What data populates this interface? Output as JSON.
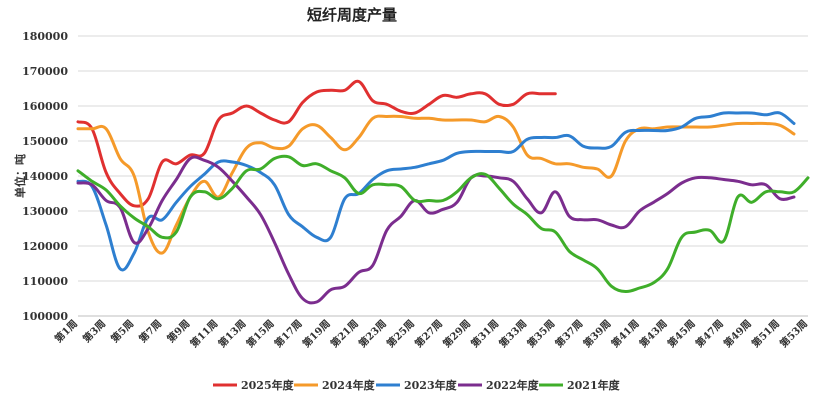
{
  "chart_data": {
    "type": "line",
    "title": "短纤周度产量",
    "ylabel": "单位：吨",
    "ylim": [
      100000,
      180000
    ],
    "yticks": [
      100000,
      110000,
      120000,
      130000,
      140000,
      150000,
      160000,
      170000,
      180000
    ],
    "ytick_labels": [
      "100000",
      "110000",
      "120000",
      "130000",
      "140000",
      "150000",
      "160000",
      "170000",
      "180000"
    ],
    "xlim": [
      1,
      53
    ],
    "xticks": [
      1,
      3,
      5,
      7,
      9,
      11,
      13,
      15,
      17,
      19,
      21,
      23,
      25,
      27,
      29,
      31,
      33,
      35,
      37,
      39,
      41,
      43,
      45,
      47,
      49,
      51,
      53
    ],
    "xtick_labels": [
      "第1周",
      "第3周",
      "第5周",
      "第7周",
      "第9周",
      "第11周",
      "第13周",
      "第15周",
      "第17周",
      "第19周",
      "第21周",
      "第23周",
      "第25周",
      "第27周",
      "第29周",
      "第31周",
      "第33周",
      "第35周",
      "第37周",
      "第39周",
      "第41周",
      "第43周",
      "第45周",
      "第47周",
      "第49周",
      "第51周",
      "第53周"
    ],
    "grid": true,
    "legend_position": "bottom",
    "series": [
      {
        "name": "2025年度",
        "color": "#e03030",
        "x": [
          1,
          2,
          3,
          4,
          5,
          6,
          7,
          8,
          9,
          10,
          11,
          12,
          13,
          14,
          15,
          16,
          17,
          18,
          19,
          20,
          21,
          22,
          23,
          24,
          25,
          26,
          27,
          28,
          29,
          30,
          31,
          32,
          33,
          34,
          35
        ],
        "y": [
          155500,
          153500,
          141000,
          135000,
          131500,
          133500,
          144000,
          143500,
          146000,
          146500,
          156000,
          158000,
          160000,
          158000,
          156000,
          155500,
          161000,
          164000,
          164500,
          164500,
          167000,
          161500,
          160500,
          158500,
          158000,
          160500,
          163000,
          162500,
          163500,
          163500,
          160500,
          160500,
          163500,
          163500,
          163500
        ]
      },
      {
        "name": "2024年度",
        "color": "#f59a2a",
        "x": [
          1,
          2,
          3,
          4,
          5,
          6,
          7,
          8,
          9,
          10,
          11,
          12,
          13,
          14,
          15,
          16,
          17,
          18,
          19,
          20,
          21,
          22,
          23,
          24,
          25,
          26,
          27,
          28,
          29,
          30,
          31,
          32,
          33,
          34,
          35,
          36,
          37,
          38,
          39,
          40,
          41,
          42,
          43,
          44,
          45,
          46,
          47,
          48,
          49,
          50,
          51,
          52
        ],
        "y": [
          153500,
          153500,
          153500,
          145000,
          140000,
          124000,
          118000,
          126000,
          134000,
          138500,
          134000,
          141000,
          148000,
          149500,
          148000,
          148500,
          153500,
          154500,
          151000,
          147500,
          151000,
          156500,
          157000,
          157000,
          156500,
          156500,
          156000,
          156000,
          156000,
          155500,
          157000,
          154000,
          146000,
          145000,
          143500,
          143500,
          142500,
          142000,
          140000,
          150000,
          153500,
          153500,
          154000,
          154000,
          154000,
          154000,
          154500,
          155000,
          155000,
          155000,
          154500,
          152000
        ]
      },
      {
        "name": "2023年度",
        "color": "#2e7fd0",
        "x": [
          1,
          2,
          3,
          4,
          5,
          6,
          7,
          8,
          9,
          10,
          11,
          12,
          13,
          14,
          15,
          16,
          17,
          18,
          19,
          20,
          21,
          22,
          23,
          24,
          25,
          26,
          27,
          28,
          29,
          30,
          31,
          32,
          33,
          34,
          35,
          36,
          37,
          38,
          39,
          40,
          41,
          42,
          43,
          44,
          45,
          46,
          47,
          48,
          49,
          50,
          51,
          52
        ],
        "y": [
          138500,
          137000,
          126000,
          113500,
          118000,
          128000,
          127500,
          132500,
          137000,
          140500,
          144000,
          144000,
          143000,
          141000,
          137500,
          129000,
          125500,
          122500,
          122500,
          133500,
          135000,
          139000,
          141500,
          142000,
          142500,
          143500,
          144500,
          146500,
          147000,
          147000,
          147000,
          147000,
          150500,
          151000,
          151000,
          151500,
          148500,
          148000,
          148500,
          152500,
          153000,
          153000,
          153000,
          154000,
          156500,
          157000,
          158000,
          158000,
          158000,
          157500,
          158000,
          155000
        ]
      },
      {
        "name": "2022年度",
        "color": "#7b2d8e",
        "x": [
          1,
          2,
          3,
          4,
          5,
          6,
          7,
          8,
          9,
          10,
          11,
          12,
          13,
          14,
          15,
          16,
          17,
          18,
          19,
          20,
          21,
          22,
          23,
          24,
          25,
          26,
          27,
          28,
          29,
          30,
          31,
          32,
          33,
          34,
          35,
          36,
          37,
          38,
          39,
          40,
          41,
          42,
          43,
          44,
          45,
          46,
          47,
          48,
          49,
          50,
          51,
          52
        ],
        "y": [
          138000,
          137500,
          133000,
          131000,
          121000,
          125000,
          133000,
          139000,
          145000,
          144500,
          142500,
          138500,
          134000,
          129000,
          121000,
          112000,
          105000,
          104000,
          107500,
          108500,
          112500,
          114500,
          124500,
          128500,
          133000,
          129500,
          130500,
          132500,
          139500,
          140000,
          139500,
          138500,
          133500,
          129500,
          135500,
          128500,
          127500,
          127500,
          126000,
          125500,
          130000,
          132500,
          135000,
          138000,
          139500,
          139500,
          139000,
          138500,
          137500,
          137500,
          133500,
          134000
        ]
      },
      {
        "name": "2021年度",
        "color": "#3fae2a",
        "x": [
          1,
          2,
          3,
          4,
          5,
          6,
          7,
          8,
          9,
          10,
          11,
          12,
          13,
          14,
          15,
          16,
          17,
          18,
          19,
          20,
          21,
          22,
          23,
          24,
          25,
          26,
          27,
          28,
          29,
          30,
          31,
          32,
          33,
          34,
          35,
          36,
          37,
          38,
          39,
          40,
          41,
          42,
          43,
          44,
          45,
          46,
          47,
          48,
          49,
          50,
          51,
          52,
          53
        ],
        "y": [
          141500,
          138500,
          136000,
          131500,
          128000,
          125500,
          122500,
          124000,
          134000,
          135500,
          133500,
          136500,
          141500,
          142000,
          145000,
          145500,
          143000,
          143500,
          141500,
          139500,
          135000,
          137500,
          137500,
          137000,
          133000,
          133000,
          133000,
          135500,
          139500,
          140500,
          136500,
          132000,
          129000,
          125000,
          124000,
          118500,
          116000,
          113500,
          108500,
          107000,
          108000,
          109500,
          113500,
          122500,
          124000,
          124500,
          121500,
          134000,
          132500,
          135500,
          135500,
          135500,
          139500
        ]
      }
    ]
  }
}
